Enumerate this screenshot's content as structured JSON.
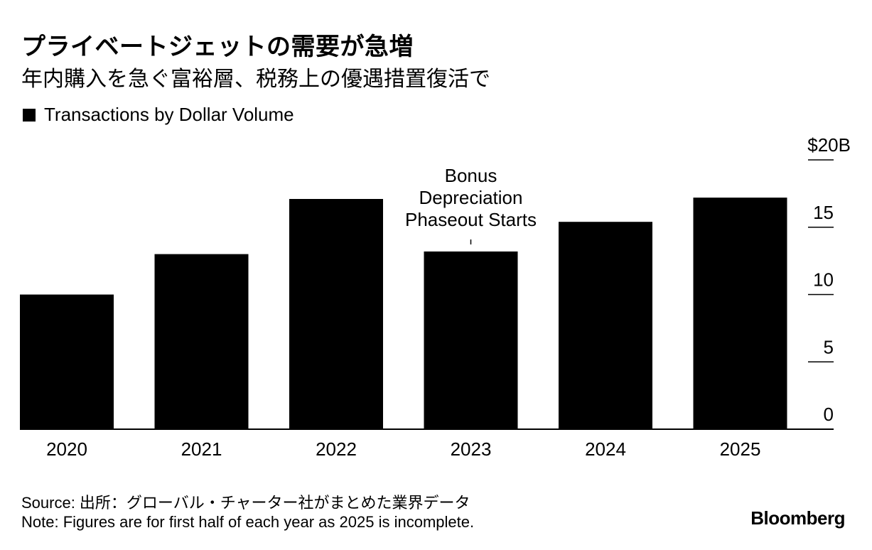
{
  "header": {
    "title": "プライベートジェットの需要が急増",
    "subtitle": "年内購入を急ぐ富裕層、税務上の優遇措置復活で"
  },
  "legend": {
    "label": "Transactions by Dollar Volume"
  },
  "footer": {
    "source": "Source: 出所：グローバル・チャーター社がまとめた業界データ",
    "note": "Note: Figures are for first half of each year as 2025 is incomplete.",
    "brand": "Bloomberg"
  },
  "colors": {
    "bar": "#000000",
    "text": "#000000",
    "background": "#ffffff"
  },
  "chart_data": {
    "type": "bar",
    "categories": [
      "2020",
      "2021",
      "2022",
      "2023",
      "2024",
      "2025"
    ],
    "series": [
      {
        "name": "Transactions by Dollar Volume",
        "values": [
          10.0,
          13.0,
          17.1,
          13.2,
          15.4,
          17.2
        ]
      }
    ],
    "ylim": [
      0,
      20
    ],
    "yticks": [
      0,
      5,
      10,
      15,
      20
    ],
    "ytick_labels": [
      "0",
      "5",
      "10",
      "15",
      "$20B"
    ],
    "yaxis_position": "right",
    "grid": false,
    "annotation": {
      "category": "2023",
      "lines": [
        "Bonus",
        "Depreciation",
        "Phaseout Starts"
      ]
    }
  }
}
